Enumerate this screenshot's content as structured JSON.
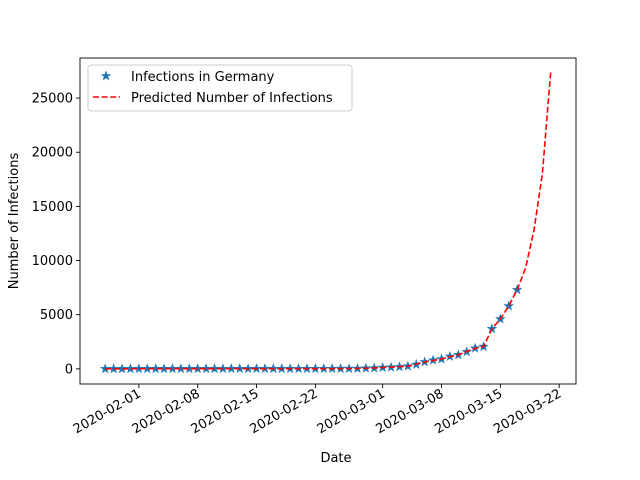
{
  "chart_data": {
    "type": "line",
    "title": "",
    "xlabel": "Date",
    "ylabel": "Number of Infections",
    "x_tick_labels": [
      "2020-02-01",
      "2020-02-08",
      "2020-02-15",
      "2020-02-22",
      "2020-03-01",
      "2020-03-08",
      "2020-03-15",
      "2020-03-22"
    ],
    "y_tick_labels": [
      "0",
      "5000",
      "10000",
      "15000",
      "20000",
      "25000"
    ],
    "y_ticks": [
      0,
      5000,
      10000,
      15000,
      20000,
      25000
    ],
    "xlim": [
      "2020-01-25",
      "2020-03-24"
    ],
    "ylim": [
      -1400,
      28700
    ],
    "grid": false,
    "legend_position": "top-left",
    "series": [
      {
        "name": "Infections in Germany",
        "style": "star-markers",
        "color": "#1f77b4",
        "points": [
          [
            "2020-01-28",
            4
          ],
          [
            "2020-01-29",
            4
          ],
          [
            "2020-01-30",
            4
          ],
          [
            "2020-01-31",
            5
          ],
          [
            "2020-02-01",
            8
          ],
          [
            "2020-02-02",
            10
          ],
          [
            "2020-02-03",
            12
          ],
          [
            "2020-02-04",
            12
          ],
          [
            "2020-02-05",
            12
          ],
          [
            "2020-02-06",
            12
          ],
          [
            "2020-02-07",
            13
          ],
          [
            "2020-02-08",
            13
          ],
          [
            "2020-02-09",
            14
          ],
          [
            "2020-02-10",
            14
          ],
          [
            "2020-02-11",
            16
          ],
          [
            "2020-02-12",
            16
          ],
          [
            "2020-02-13",
            16
          ],
          [
            "2020-02-14",
            16
          ],
          [
            "2020-02-15",
            16
          ],
          [
            "2020-02-16",
            16
          ],
          [
            "2020-02-17",
            16
          ],
          [
            "2020-02-18",
            16
          ],
          [
            "2020-02-19",
            16
          ],
          [
            "2020-02-20",
            16
          ],
          [
            "2020-02-21",
            16
          ],
          [
            "2020-02-22",
            16
          ],
          [
            "2020-02-23",
            16
          ],
          [
            "2020-02-24",
            16
          ],
          [
            "2020-02-25",
            18
          ],
          [
            "2020-02-26",
            21
          ],
          [
            "2020-02-27",
            26
          ],
          [
            "2020-02-28",
            53
          ],
          [
            "2020-02-29",
            66
          ],
          [
            "2020-03-01",
            117
          ],
          [
            "2020-03-02",
            150
          ],
          [
            "2020-03-03",
            188
          ],
          [
            "2020-03-04",
            240
          ],
          [
            "2020-03-05",
            400
          ],
          [
            "2020-03-06",
            639
          ],
          [
            "2020-03-07",
            795
          ],
          [
            "2020-03-08",
            902
          ],
          [
            "2020-03-09",
            1139
          ],
          [
            "2020-03-10",
            1296
          ],
          [
            "2020-03-11",
            1567
          ],
          [
            "2020-03-12",
            1900
          ],
          [
            "2020-03-13",
            2050
          ],
          [
            "2020-03-14",
            3700
          ],
          [
            "2020-03-15",
            4600
          ],
          [
            "2020-03-16",
            5800
          ],
          [
            "2020-03-17",
            7300
          ]
        ]
      },
      {
        "name": "Predicted Number of Infections",
        "style": "dashed",
        "color": "#ff0000",
        "points": [
          [
            "2020-01-28",
            4
          ],
          [
            "2020-02-01",
            8
          ],
          [
            "2020-02-05",
            12
          ],
          [
            "2020-02-10",
            14
          ],
          [
            "2020-02-15",
            16
          ],
          [
            "2020-02-20",
            16
          ],
          [
            "2020-02-25",
            18
          ],
          [
            "2020-02-28",
            53
          ],
          [
            "2020-03-01",
            117
          ],
          [
            "2020-03-04",
            240
          ],
          [
            "2020-03-06",
            639
          ],
          [
            "2020-03-08",
            902
          ],
          [
            "2020-03-10",
            1296
          ],
          [
            "2020-03-12",
            1900
          ],
          [
            "2020-03-13",
            2050
          ],
          [
            "2020-03-14",
            3700
          ],
          [
            "2020-03-15",
            4600
          ],
          [
            "2020-03-16",
            5800
          ],
          [
            "2020-03-17",
            7300
          ],
          [
            "2020-03-18",
            9300
          ],
          [
            "2020-03-19",
            12800
          ],
          [
            "2020-03-20",
            18000
          ],
          [
            "2020-03-21",
            27500
          ]
        ]
      }
    ]
  }
}
